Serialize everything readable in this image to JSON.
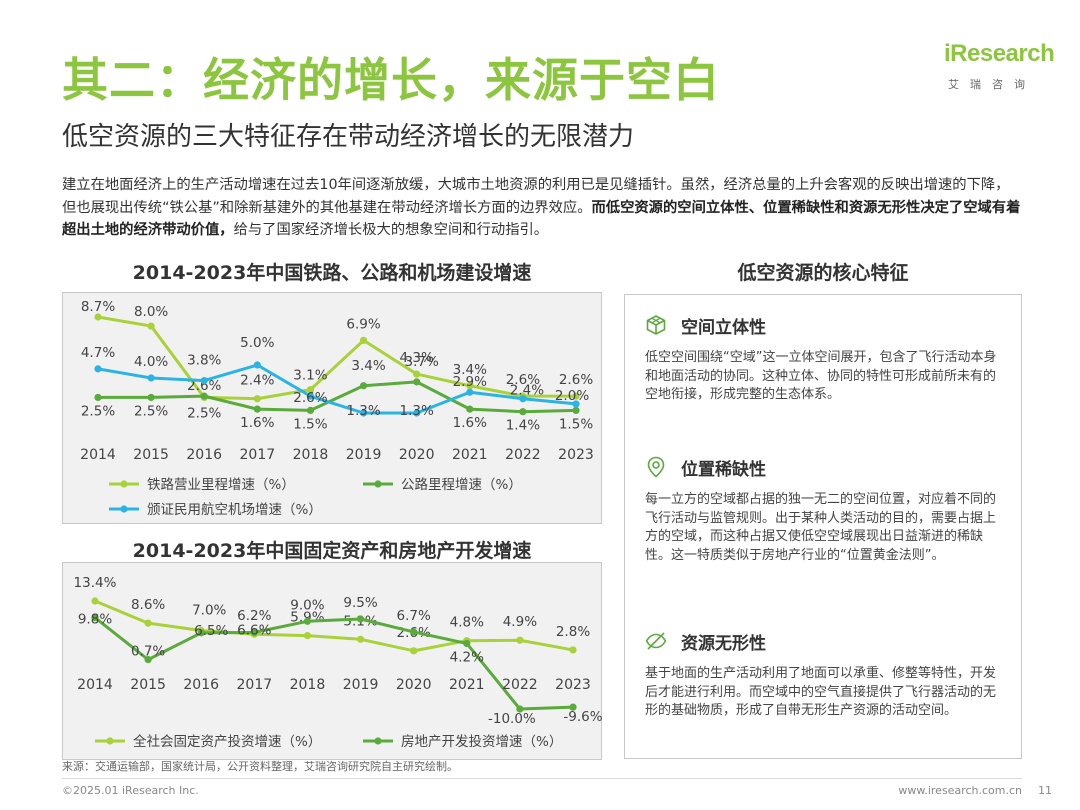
{
  "header": {
    "title": "其二：经济的增长，来源于空白",
    "subtitle": "低空资源的三大特征存在带动经济增长的无限潜力"
  },
  "logo": {
    "brand": "iResearch",
    "sub": "艾瑞咨询"
  },
  "intro": {
    "normal": "建立在地面经济上的生产活动增速在过去10年间逐渐放缓，大城市土地资源的利用已是见缝插针。虽然，经济总量的上升会客观的反映出增速的下降，但也展现出传统“铁公基”和除新基建外的其他基建在带动经济增长方面的边界效应。",
    "bold": "而低空资源的空间立体性、位置稀缺性和资源无形性决定了空域有着超出土地的经济带动价值，",
    "tail": "给与了国家经济增长极大的想象空间和行动指引。"
  },
  "chart_data": [
    {
      "type": "line",
      "title": "2014-2023年中国铁路、公路和机场建设增速",
      "categories": [
        "2014",
        "2015",
        "2016",
        "2017",
        "2018",
        "2019",
        "2020",
        "2021",
        "2022",
        "2023"
      ],
      "series": [
        {
          "name": "铁路营业里程增速（%）",
          "color": "#a9d13a",
          "values": [
            8.7,
            8.0,
            2.5,
            2.4,
            3.1,
            6.9,
            4.3,
            3.4,
            2.6,
            2.6
          ],
          "labels": [
            "8.7%",
            "8.0%",
            "2.5%",
            "2.4%",
            "3.1%",
            "6.9%",
            "4.3%",
            "3.4%",
            "2.6%",
            "2.6%"
          ]
        },
        {
          "name": "公路里程增速（%）",
          "color": "#5aaa3c",
          "values": [
            2.5,
            2.5,
            2.6,
            1.6,
            1.5,
            3.4,
            3.7,
            1.6,
            1.4,
            1.5
          ],
          "labels": [
            "2.5%",
            "2.5%",
            "2.6%",
            "1.6%",
            "1.5%",
            "3.4%",
            "3.7%",
            "1.6%",
            "1.4%",
            "1.5%"
          ]
        },
        {
          "name": "颁证民用航空机场增速（%）",
          "color": "#2bb3e6",
          "values": [
            4.7,
            4.0,
            3.8,
            5.0,
            2.6,
            1.3,
            1.3,
            2.9,
            2.4,
            2.0
          ],
          "labels": [
            "4.7%",
            "4.0%",
            "3.8%",
            "5.0%",
            "2.6%",
            "1.3%",
            "1.3%",
            "2.9%",
            "2.4%",
            "2.0%"
          ]
        }
      ]
    },
    {
      "type": "line",
      "title": "2014-2023年中国固定资产和房地产开发增速",
      "categories": [
        "2014",
        "2015",
        "2016",
        "2017",
        "2018",
        "2019",
        "2020",
        "2021",
        "2022",
        "2023"
      ],
      "series": [
        {
          "name": "全社会固定资产投资增速（%）",
          "color": "#a9d13a",
          "values": [
            13.4,
            8.6,
            7.0,
            6.2,
            5.9,
            5.1,
            2.6,
            4.8,
            4.9,
            2.8
          ],
          "labels": [
            "13.4%",
            "8.6%",
            "7.0%",
            "6.2%",
            "5.9%",
            "5.1%",
            "2.6%",
            "4.8%",
            "4.9%",
            "2.8%"
          ]
        },
        {
          "name": "房地产开发投资增速（%）",
          "color": "#5aaa3c",
          "values": [
            9.8,
            0.7,
            6.5,
            6.6,
            9.0,
            9.5,
            6.7,
            4.2,
            -10.0,
            -9.6
          ],
          "labels": [
            "9.8%",
            "0.7%",
            "6.5%",
            "6.6%",
            "9.0%",
            "9.5%",
            "6.7%",
            "4.2%",
            "-10.0%",
            "-9.6%"
          ]
        }
      ]
    }
  ],
  "panel": {
    "title": "低空资源的核心特征",
    "features": [
      {
        "icon": "cube-icon",
        "title": "空间立体性",
        "body": "低空空间围绕“空域”这一立体空间展开，包含了飞行活动本身和地面活动的协同。这种立体、协同的特性可形成前所未有的空地衔接，形成完整的生态体系。"
      },
      {
        "icon": "location-pin-icon",
        "title": "位置稀缺性",
        "body": "每一立方的空域都占据的独一无二的空间位置，对应着不同的飞行活动与监管规则。出于某种人类活动的目的，需要占据上方的空域，而这种占据又使低空空域展现出日益渐进的稀缺性。这一特质类似于房地产行业的“位置黄金法则”。"
      },
      {
        "icon": "invisible-icon",
        "title": "资源无形性",
        "body": "基于地面的生产活动利用了地面可以承重、修整等特性，开发后才能进行利用。而空域中的空气直接提供了飞行器活动的无形的基础物质，形成了自带无形生产资源的活动空间。"
      }
    ]
  },
  "footer": {
    "source": "来源：交通运输部，国家统计局，公开资料整理，艾瑞咨询研究院自主研究绘制。",
    "copyright": "©2025.01 iResearch Inc.",
    "website": "www.iresearch.com.cn",
    "page": "11"
  }
}
